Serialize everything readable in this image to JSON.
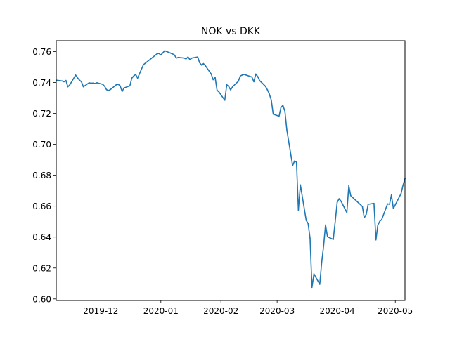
{
  "chart_data": {
    "type": "line",
    "title": "NOK vs DKK",
    "xlabel": "",
    "ylabel": "",
    "xlim": [
      "2019-11-08",
      "2020-05-06"
    ],
    "ylim": [
      0.599,
      0.767
    ],
    "grid": false,
    "x_ticks": [
      "2019-12-01",
      "2020-01-01",
      "2020-02-01",
      "2020-03-01",
      "2020-04-01",
      "2020-05-01"
    ],
    "x_tick_labels": [
      "2019-12",
      "2020-01",
      "2020-02",
      "2020-03",
      "2020-04",
      "2020-05"
    ],
    "y_ticks": [
      0.6,
      0.62,
      0.64,
      0.66,
      0.68,
      0.7,
      0.72,
      0.74,
      0.76
    ],
    "y_tick_labels": [
      "0.60",
      "0.62",
      "0.64",
      "0.66",
      "0.68",
      "0.70",
      "0.72",
      "0.74",
      "0.76"
    ],
    "color": "#1f77b4",
    "series": [
      {
        "x": [
          "2019-11-08",
          "2019-11-11",
          "2019-11-12",
          "2019-11-13",
          "2019-11-14",
          "2019-11-15",
          "2019-11-18",
          "2019-11-19",
          "2019-11-20",
          "2019-11-21",
          "2019-11-22",
          "2019-11-25",
          "2019-11-26",
          "2019-11-27",
          "2019-11-28",
          "2019-11-29",
          "2019-12-02",
          "2019-12-03",
          "2019-12-04",
          "2019-12-05",
          "2019-12-06",
          "2019-12-09",
          "2019-12-10",
          "2019-12-11",
          "2019-12-12",
          "2019-12-13",
          "2019-12-16",
          "2019-12-17",
          "2019-12-18",
          "2019-12-19",
          "2019-12-20",
          "2019-12-23",
          "2019-12-30",
          "2019-12-31",
          "2020-01-01",
          "2020-01-02",
          "2020-01-03",
          "2020-01-06",
          "2020-01-07",
          "2020-01-08",
          "2020-01-09",
          "2020-01-10",
          "2020-01-13",
          "2020-01-14",
          "2020-01-15",
          "2020-01-16",
          "2020-01-17",
          "2020-01-20",
          "2020-01-21",
          "2020-01-22",
          "2020-01-23",
          "2020-01-24",
          "2020-01-27",
          "2020-01-28",
          "2020-01-29",
          "2020-01-30",
          "2020-01-31",
          "2020-02-03",
          "2020-02-04",
          "2020-02-05",
          "2020-02-06",
          "2020-02-07",
          "2020-02-10",
          "2020-02-11",
          "2020-02-12",
          "2020-02-13",
          "2020-02-14",
          "2020-02-17",
          "2020-02-18",
          "2020-02-19",
          "2020-02-20",
          "2020-02-21",
          "2020-02-24",
          "2020-02-25",
          "2020-02-26",
          "2020-02-27",
          "2020-02-28",
          "2020-03-02",
          "2020-03-03",
          "2020-03-04",
          "2020-03-05",
          "2020-03-06",
          "2020-03-09",
          "2020-03-10",
          "2020-03-11",
          "2020-03-12",
          "2020-03-13",
          "2020-03-16",
          "2020-03-17",
          "2020-03-18",
          "2020-03-19",
          "2020-03-20",
          "2020-03-23",
          "2020-03-24",
          "2020-03-25",
          "2020-03-26",
          "2020-03-27",
          "2020-03-30",
          "2020-03-31",
          "2020-04-01",
          "2020-04-02",
          "2020-04-03",
          "2020-04-06",
          "2020-04-07",
          "2020-04-08",
          "2020-04-14",
          "2020-04-15",
          "2020-04-16",
          "2020-04-17",
          "2020-04-20",
          "2020-04-21",
          "2020-04-22",
          "2020-04-23",
          "2020-04-24",
          "2020-04-27",
          "2020-04-28",
          "2020-04-29",
          "2020-04-30",
          "2020-05-04",
          "2020-05-05",
          "2020-05-06"
        ],
        "y": [
          0.7415,
          0.741,
          0.7405,
          0.7413,
          0.7372,
          0.7385,
          0.7448,
          0.743,
          0.7415,
          0.7405,
          0.7372,
          0.7398,
          0.7395,
          0.7396,
          0.7393,
          0.7398,
          0.7388,
          0.7375,
          0.7353,
          0.7348,
          0.7355,
          0.7385,
          0.7388,
          0.7378,
          0.7342,
          0.7365,
          0.7378,
          0.7428,
          0.7442,
          0.7452,
          0.7428,
          0.7515,
          0.7585,
          0.7588,
          0.7578,
          0.7592,
          0.7605,
          0.759,
          0.7585,
          0.7578,
          0.7558,
          0.7562,
          0.7558,
          0.7552,
          0.7565,
          0.7548,
          0.7558,
          0.7565,
          0.7528,
          0.7512,
          0.7522,
          0.7508,
          0.7455,
          0.7418,
          0.7432,
          0.735,
          0.7338,
          0.7285,
          0.7385,
          0.7375,
          0.7352,
          0.7372,
          0.7408,
          0.7442,
          0.7448,
          0.7452,
          0.7448,
          0.7435,
          0.7405,
          0.7455,
          0.7438,
          0.7412,
          0.7375,
          0.7352,
          0.7325,
          0.7285,
          0.7195,
          0.7182,
          0.7238,
          0.7252,
          0.7215,
          0.7095,
          0.6862,
          0.6892,
          0.6885,
          0.6575,
          0.6738,
          0.6508,
          0.6488,
          0.6392,
          0.6075,
          0.6162,
          0.6095,
          0.6235,
          0.6345,
          0.6478,
          0.6402,
          0.6385,
          0.6502,
          0.6625,
          0.6648,
          0.6632,
          0.6558,
          0.6732,
          0.6668,
          0.6598,
          0.6525,
          0.6548,
          0.6612,
          0.6618,
          0.6382,
          0.6478,
          0.6502,
          0.6513,
          0.6615,
          0.6612,
          0.6672,
          0.6585,
          0.6682,
          0.6735,
          0.6778
        ]
      }
    ]
  }
}
